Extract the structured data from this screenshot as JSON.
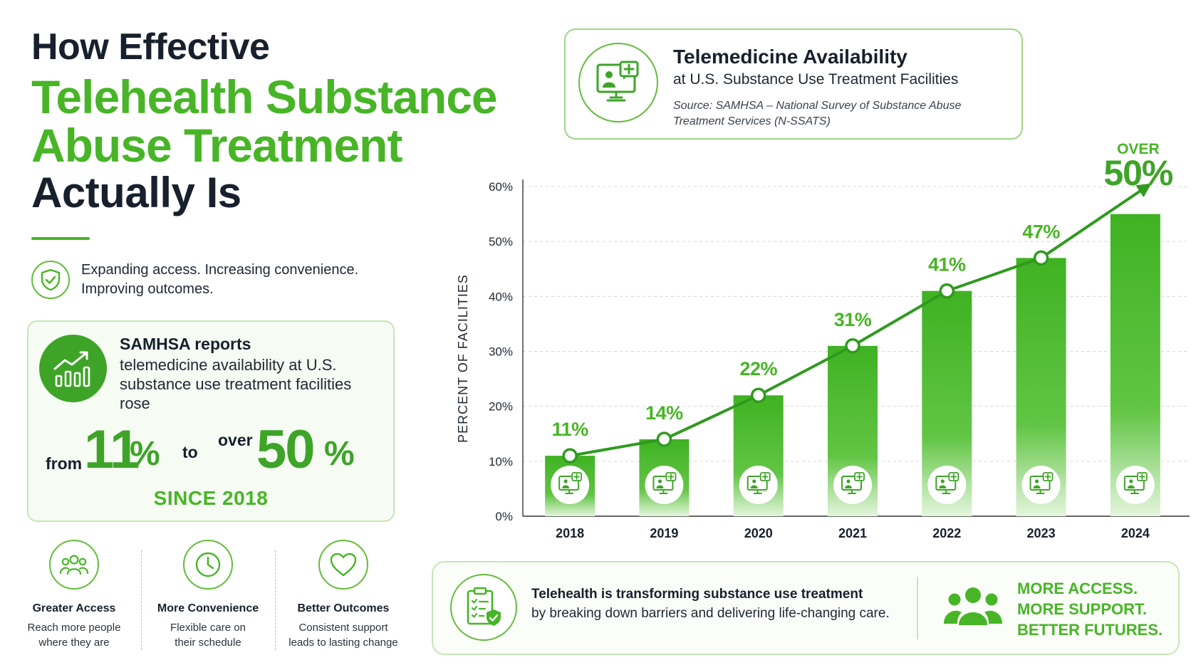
{
  "title": {
    "line1": "How Effective",
    "line2": "Telehealth Substance",
    "line3": "Abuse Treatment",
    "line4": "Actually Is"
  },
  "tagline": "Expanding access. Increasing convenience. Improving outcomes.",
  "samhsa_card": {
    "heading": "SAMHSA reports",
    "body": "telemedicine availability at U.S. substance use treatment facilities rose",
    "from_word": "from",
    "from_value": "11",
    "to_word": "to",
    "over_word": "over",
    "to_value": "50",
    "pct": "%",
    "since": "SINCE 2018"
  },
  "benefits": [
    {
      "title": "Greater Access",
      "line1": "Reach more people",
      "line2": "where they are"
    },
    {
      "title": "More Convenience",
      "line1": "Flexible care on",
      "line2": "their schedule"
    },
    {
      "title": "Better Outcomes",
      "line1": "Consistent support",
      "line2": "leads to lasting change"
    }
  ],
  "chart_header": {
    "title": "Telemedicine Availability",
    "subtitle": "at U.S. Substance Use Treatment Facilities",
    "source": "Source: SAMHSA – National Survey of Substance Abuse Treatment Services (N-SSATS)"
  },
  "chart_data": {
    "type": "bar",
    "categories": [
      "2018",
      "2019",
      "2020",
      "2021",
      "2022",
      "2023",
      "2024"
    ],
    "values": [
      11,
      14,
      22,
      31,
      41,
      47,
      50
    ],
    "labels": [
      "11%",
      "14%",
      "22%",
      "31%",
      "41%",
      "47%",
      "50%"
    ],
    "last_label_prefix": "OVER",
    "ylabel": "PERCENT OF FACILITIES",
    "yticks": [
      "0%",
      "10%",
      "20%",
      "30%",
      "40%",
      "50%",
      "60%"
    ],
    "ylim": [
      0,
      60
    ],
    "grid": true,
    "trend_line": true,
    "bar_color": "#47b526"
  },
  "footer": {
    "heading": "Telehealth is transforming substance use treatment",
    "body": "by breaking down barriers and delivering life-changing care.",
    "slogan": [
      "MORE ACCESS.",
      "MORE SUPPORT.",
      "BETTER FUTURES."
    ]
  },
  "colors": {
    "accent_green": "#47b526",
    "dark_green": "#3ea428",
    "text_dark": "#17202c"
  }
}
